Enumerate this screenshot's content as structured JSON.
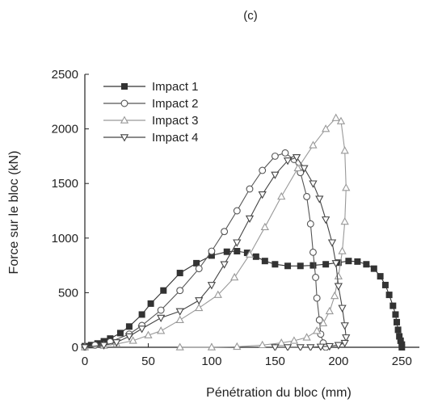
{
  "chart_data": {
    "type": "line",
    "panel_label": "(c)",
    "xlabel": "Pénétration du bloc (mm)",
    "ylabel": "Force sur le bloc (kN)",
    "xlim": [
      0,
      260
    ],
    "ylim": [
      0,
      2500
    ],
    "xticks": [
      0,
      50,
      100,
      150,
      200,
      250
    ],
    "yticks": [
      0,
      500,
      1000,
      1500,
      2000,
      2500
    ],
    "grid": false,
    "legend_position": "top-left",
    "series": [
      {
        "name": "Impact 1",
        "marker": "square-filled",
        "color": "#333333",
        "x": [
          0,
          5,
          10,
          15,
          20,
          28,
          35,
          45,
          52,
          62,
          75,
          88,
          100,
          112,
          120,
          128,
          135,
          142,
          150,
          160,
          170,
          180,
          190,
          200,
          208,
          215,
          222,
          228,
          233,
          237,
          240,
          243,
          245,
          246,
          247,
          248,
          249,
          250,
          250
        ],
        "y": [
          10,
          20,
          35,
          55,
          80,
          130,
          190,
          300,
          400,
          520,
          680,
          770,
          840,
          875,
          880,
          865,
          830,
          790,
          760,
          745,
          745,
          750,
          760,
          775,
          790,
          785,
          760,
          720,
          650,
          570,
          480,
          380,
          300,
          230,
          160,
          100,
          60,
          25,
          0
        ]
      },
      {
        "name": "Impact 2",
        "marker": "circle-open",
        "color": "#555555",
        "x": [
          0,
          8,
          20,
          35,
          45,
          60,
          75,
          90,
          100,
          110,
          120,
          130,
          140,
          150,
          158,
          165,
          170,
          175,
          178,
          180,
          182,
          183,
          185,
          186,
          188,
          190
        ],
        "y": [
          0,
          20,
          50,
          120,
          200,
          340,
          520,
          720,
          880,
          1060,
          1250,
          1450,
          1620,
          1750,
          1780,
          1720,
          1600,
          1380,
          1130,
          870,
          640,
          450,
          250,
          120,
          40,
          0
        ]
      },
      {
        "name": "Impact 3",
        "marker": "triangle-up-open",
        "color": "#999999",
        "x": [
          0,
          15,
          25,
          38,
          50,
          60,
          75,
          90,
          105,
          118,
          130,
          142,
          155,
          168,
          180,
          190,
          198,
          202,
          205,
          206,
          205,
          203,
          200,
          197,
          193,
          188,
          183,
          175,
          165,
          155,
          140,
          120,
          100,
          75
        ],
        "y": [
          0,
          15,
          30,
          60,
          110,
          150,
          250,
          360,
          480,
          640,
          850,
          1100,
          1380,
          1640,
          1850,
          2000,
          2100,
          2070,
          1800,
          1460,
          1150,
          880,
          650,
          470,
          330,
          220,
          150,
          90,
          60,
          40,
          20,
          5,
          0,
          0
        ]
      },
      {
        "name": "Impact 4",
        "marker": "triangle-down-open",
        "color": "#444444",
        "x": [
          0,
          15,
          25,
          35,
          45,
          60,
          75,
          90,
          100,
          110,
          120,
          130,
          140,
          150,
          160,
          167,
          173,
          180,
          185,
          190,
          195,
          198,
          200,
          203,
          205,
          206,
          205,
          200,
          193,
          186,
          178,
          170,
          160,
          150
        ],
        "y": [
          0,
          20,
          45,
          100,
          170,
          270,
          330,
          430,
          570,
          760,
          960,
          1180,
          1400,
          1580,
          1710,
          1740,
          1640,
          1500,
          1360,
          1170,
          960,
          770,
          560,
          360,
          200,
          90,
          40,
          20,
          10,
          5,
          0,
          0,
          0,
          0
        ]
      }
    ]
  }
}
